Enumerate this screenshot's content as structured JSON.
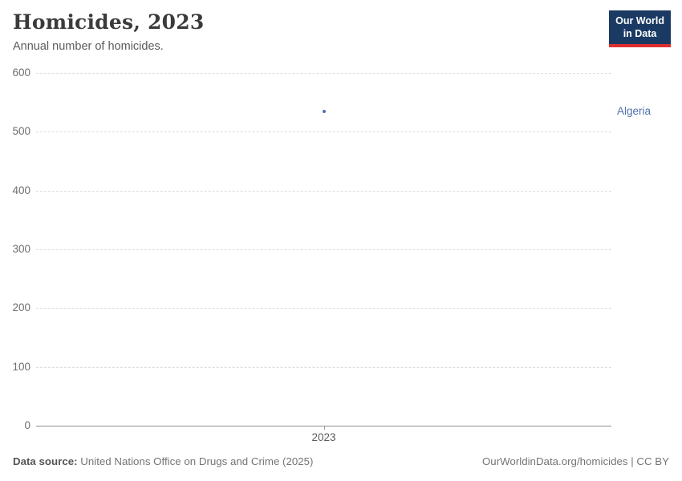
{
  "header": {
    "title": "Homicides, 2023",
    "subtitle": "Annual number of homicides.",
    "logo": {
      "line1": "Our World",
      "line2": "in Data",
      "bg_color": "#1a3a63",
      "accent_color": "#e02e2e"
    }
  },
  "chart_data": {
    "type": "scatter",
    "title": "Homicides, 2023",
    "subtitle": "Annual number of homicides.",
    "x": [
      2023
    ],
    "x_tick_labels": [
      "2023"
    ],
    "series": [
      {
        "name": "Algeria",
        "color": "#4f70ad",
        "values": [
          535
        ]
      }
    ],
    "xlabel": "",
    "ylabel": "",
    "ylim": [
      0,
      600
    ],
    "y_ticks": [
      0,
      100,
      200,
      300,
      400,
      500,
      600
    ],
    "grid": "horizontal-dashed",
    "legend_position": "entity-label-right",
    "gridline_color": "#dcdcdc",
    "axis_color": "#8f8f8f"
  },
  "footer": {
    "source_label": "Data source:",
    "source_text": "United Nations Office on Drugs and Crime (2025)",
    "license": "OurWorldinData.org/homicides | CC BY"
  }
}
